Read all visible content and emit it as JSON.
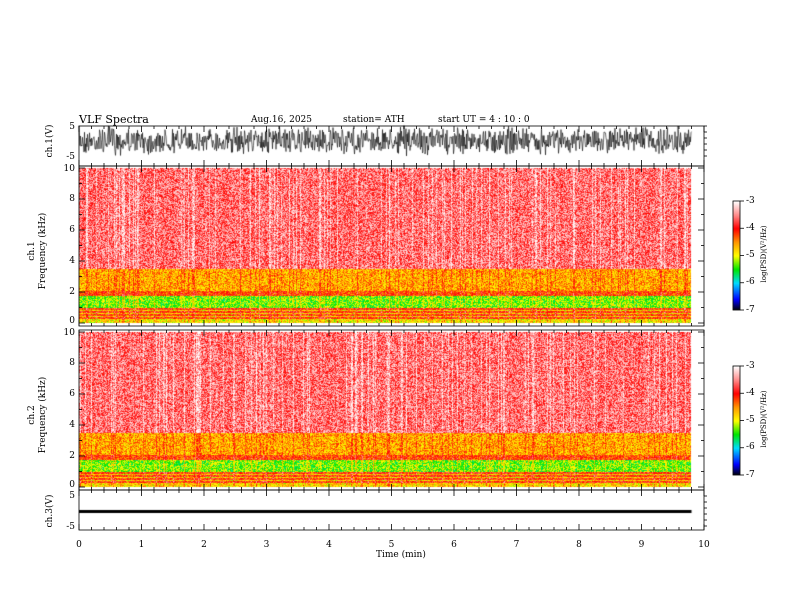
{
  "header": {
    "title": "VLF  Spectra",
    "date": "Aug.16, 2025",
    "station": "station= ATH",
    "start": "start  UT  =   4  : 10 : 0"
  },
  "chart_data": [
    {
      "type": "line",
      "name": "ch1-waveform",
      "ylabel": "ch.1(V)",
      "ylim": [
        -5,
        5
      ],
      "yticks": [
        "5",
        "-5"
      ],
      "xlim": [
        0,
        10
      ],
      "data_end_min": 9.8,
      "description_level": "noise spanning roughly -5 to 5 V"
    },
    {
      "type": "heatmap",
      "name": "ch1-spectrogram",
      "ylabel_top": "ch.1",
      "ylabel": "Frequency  (kHz)",
      "ylim": [
        0,
        10
      ],
      "yticks": [
        "0",
        "2",
        "4",
        "6",
        "8",
        "10"
      ],
      "bands": [
        {
          "f": [
            0,
            0.3
          ],
          "level": -4.9
        },
        {
          "f": [
            0.3,
            1.0
          ],
          "level": -4.4
        },
        {
          "f": [
            1.0,
            1.8
          ],
          "level": -5.3
        },
        {
          "f": [
            1.8,
            2.1
          ],
          "level": -4.2
        },
        {
          "f": [
            2.1,
            3.5
          ],
          "level": -4.6
        },
        {
          "f": [
            3.5,
            10
          ],
          "level": -3.6
        }
      ],
      "colorbar": {
        "label": "log(PSD)(V²/Hz)",
        "ticks": [
          "-3",
          "-4",
          "-5",
          "-6",
          "-7"
        ],
        "range": [
          -7,
          -3
        ]
      }
    },
    {
      "type": "heatmap",
      "name": "ch2-spectrogram",
      "ylabel_top": "ch.2",
      "ylabel": "Frequency  (kHz)",
      "ylim": [
        0,
        10
      ],
      "yticks": [
        "0",
        "2",
        "4",
        "6",
        "8",
        "10"
      ],
      "bands": [
        {
          "f": [
            0,
            0.3
          ],
          "level": -4.8
        },
        {
          "f": [
            0.3,
            1.0
          ],
          "level": -4.4
        },
        {
          "f": [
            1.0,
            1.8
          ],
          "level": -5.3
        },
        {
          "f": [
            1.8,
            2.1
          ],
          "level": -4.2
        },
        {
          "f": [
            2.1,
            3.5
          ],
          "level": -4.6
        },
        {
          "f": [
            3.5,
            10
          ],
          "level": -3.6
        }
      ],
      "colorbar": {
        "label": "log(PSD)(V²/Hz)",
        "ticks": [
          "-3",
          "-4",
          "-5",
          "-6",
          "-7"
        ],
        "range": [
          -7,
          -3
        ]
      }
    },
    {
      "type": "line",
      "name": "ch3-waveform",
      "ylabel": "ch.3(V)",
      "ylim": [
        -5,
        5
      ],
      "yticks": [
        "5",
        "-5"
      ],
      "level": -1.5
    }
  ],
  "xaxis": {
    "label": "Time  (min)",
    "ticks": [
      "0",
      "1",
      "2",
      "3",
      "4",
      "5",
      "6",
      "7",
      "8",
      "9",
      "10"
    ],
    "range": [
      0,
      10
    ]
  }
}
